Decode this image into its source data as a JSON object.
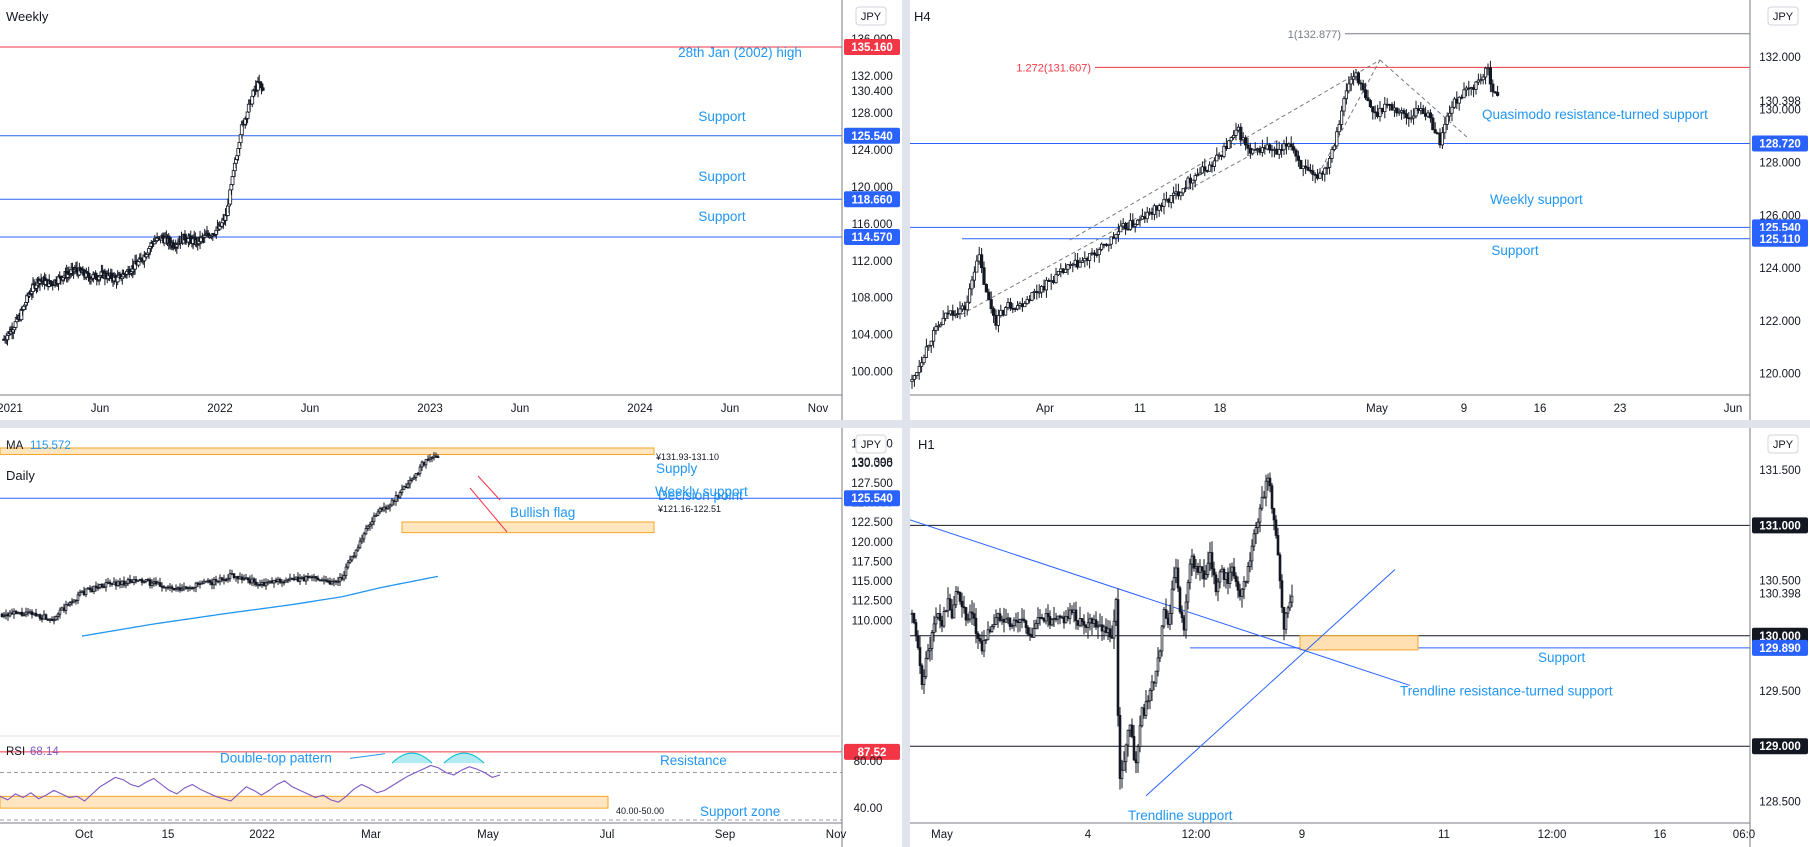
{
  "currency_badge": "JPY",
  "chart_data": [
    {
      "id": "weekly",
      "type": "candlestick",
      "title": "Weekly",
      "price_axis": {
        "min": 98.0,
        "max": 137.0,
        "ticks": [
          "136.000",
          "132.000",
          "128.000",
          "124.000",
          "120.000",
          "116.000",
          "112.000",
          "108.000",
          "104.000",
          "100.000"
        ]
      },
      "time_axis": [
        "2021",
        "Jun",
        "2022",
        "Jun",
        "2023",
        "Jun",
        "2024",
        "Jun",
        "Nov"
      ],
      "last_price": "130.400",
      "levels": [
        {
          "price": 135.16,
          "value": "135.160",
          "color": "#f23645",
          "label": "28th Jan (2002) high"
        },
        {
          "price": 125.54,
          "value": "125.540",
          "color": "#2962ff",
          "label": "Support"
        },
        {
          "price": 118.66,
          "value": "118.660",
          "color": "#2962ff",
          "label": "Support"
        },
        {
          "price": 114.57,
          "value": "114.570",
          "color": "#2962ff",
          "label": "Support"
        }
      ],
      "price_path": [
        [
          0,
          103.5
        ],
        [
          6,
          104.5
        ],
        [
          14,
          106
        ],
        [
          22,
          108.5
        ],
        [
          30,
          110
        ],
        [
          40,
          109.5
        ],
        [
          50,
          110.3
        ],
        [
          62,
          111
        ],
        [
          74,
          110.2
        ],
        [
          86,
          110.5
        ],
        [
          98,
          110
        ],
        [
          108,
          111
        ],
        [
          118,
          112
        ],
        [
          128,
          114
        ],
        [
          136,
          114.5
        ],
        [
          146,
          113.8
        ],
        [
          156,
          114.5
        ],
        [
          166,
          114
        ],
        [
          176,
          114.8
        ],
        [
          186,
          115.5
        ],
        [
          192,
          117
        ],
        [
          196,
          120
        ],
        [
          200,
          123
        ],
        [
          204,
          126
        ],
        [
          208,
          127.5
        ],
        [
          212,
          129
        ],
        [
          216,
          130.5
        ],
        [
          220,
          131.2
        ],
        [
          223,
          130.4
        ]
      ]
    },
    {
      "id": "h4",
      "type": "candlestick",
      "title": "H4",
      "price_axis": {
        "min": 119.0,
        "max": 133.4,
        "ticks": [
          "132.000",
          "130.000",
          "128.000",
          "126.000",
          "124.000",
          "122.000",
          "120.000"
        ]
      },
      "time_axis": [
        "Apr",
        "11",
        "18",
        "May",
        "9",
        "16",
        "23",
        "Jun"
      ],
      "last_price": "130.398",
      "fib_levels": [
        {
          "price": 132.877,
          "label": "1(132.877)",
          "color": "#787b86"
        },
        {
          "price": 131.607,
          "label": "1.272(131.607)",
          "color": "#f23645"
        }
      ],
      "levels": [
        {
          "price": 128.72,
          "value": "128.720",
          "color": "#2962ff",
          "label": "Quasimodo resistance-turned support"
        },
        {
          "price": 125.54,
          "value": "125.540",
          "color": "#2962ff",
          "label": "Weekly support"
        },
        {
          "price": 125.11,
          "value": "125.110",
          "color": "#2962ff",
          "label": "Support"
        }
      ],
      "price_path": [
        [
          0,
          119.7
        ],
        [
          15,
          121.3
        ],
        [
          30,
          122.3
        ],
        [
          45,
          122.5
        ],
        [
          55,
          124.6
        ],
        [
          62,
          123
        ],
        [
          70,
          122
        ],
        [
          80,
          122.6
        ],
        [
          90,
          122.6
        ],
        [
          100,
          123
        ],
        [
          115,
          123.5
        ],
        [
          130,
          124
        ],
        [
          145,
          124.3
        ],
        [
          160,
          124.8
        ],
        [
          175,
          125.5
        ],
        [
          190,
          125.8
        ],
        [
          205,
          126.3
        ],
        [
          220,
          126.8
        ],
        [
          235,
          127.5
        ],
        [
          250,
          127.9
        ],
        [
          265,
          128.8
        ],
        [
          272,
          129.2
        ],
        [
          282,
          128.3
        ],
        [
          295,
          128.6
        ],
        [
          305,
          128.3
        ],
        [
          315,
          128.8
        ],
        [
          325,
          127.8
        ],
        [
          335,
          127.4
        ],
        [
          345,
          127.8
        ],
        [
          352,
          128.8
        ],
        [
          358,
          130
        ],
        [
          364,
          131
        ],
        [
          370,
          131.4
        ],
        [
          378,
          130.4
        ],
        [
          386,
          129.8
        ],
        [
          394,
          130.2
        ],
        [
          404,
          130
        ],
        [
          414,
          129.7
        ],
        [
          424,
          130.1
        ],
        [
          432,
          129.6
        ],
        [
          440,
          128.8
        ],
        [
          448,
          130
        ],
        [
          456,
          130.5
        ],
        [
          466,
          130.8
        ],
        [
          474,
          131.2
        ],
        [
          480,
          131.5
        ],
        [
          484,
          130.8
        ],
        [
          488,
          130.4
        ]
      ]
    },
    {
      "id": "daily",
      "type": "candlestick",
      "title": "Daily",
      "ma_label": "MA",
      "ma_value": "115.572",
      "price_axis": {
        "min": 107.5,
        "max": 133.2,
        "ticks": [
          "132.500",
          "130.000",
          "127.500",
          "125.000",
          "122.500",
          "120.000",
          "117.500",
          "115.000",
          "112.500",
          "110.000"
        ]
      },
      "time_axis": [
        "Oct",
        "15",
        "2022",
        "Mar",
        "May",
        "Jul",
        "Sep",
        "Nov"
      ],
      "last_price": "130.398",
      "zones": [
        {
          "from": 131.1,
          "to": 131.93,
          "label": "Supply",
          "range_label": "¥131.93-131.10"
        },
        {
          "from": 121.16,
          "to": 122.51,
          "label": "Decision point",
          "range_label": "¥121.16-122.51"
        }
      ],
      "levels": [
        {
          "price": 125.54,
          "value": "125.540",
          "color": "#2962ff",
          "label": "Weekly support"
        }
      ],
      "pattern_label": "Bullish flag",
      "price_path": [
        [
          0,
          110.8
        ],
        [
          30,
          110.8
        ],
        [
          50,
          110.2
        ],
        [
          65,
          111.8
        ],
        [
          80,
          113.5
        ],
        [
          100,
          114.5
        ],
        [
          120,
          114.8
        ],
        [
          140,
          115
        ],
        [
          160,
          114.4
        ],
        [
          175,
          113.8
        ],
        [
          195,
          114.5
        ],
        [
          215,
          115
        ],
        [
          230,
          115.8
        ],
        [
          245,
          115.2
        ],
        [
          260,
          114.5
        ],
        [
          275,
          115
        ],
        [
          295,
          115.2
        ],
        [
          315,
          115.5
        ],
        [
          330,
          114.8
        ],
        [
          340,
          115.5
        ],
        [
          350,
          118
        ],
        [
          360,
          120.5
        ],
        [
          370,
          122.8
        ],
        [
          378,
          124
        ],
        [
          388,
          124.8
        ],
        [
          398,
          126
        ],
        [
          406,
          127.5
        ],
        [
          414,
          128.5
        ],
        [
          420,
          130
        ],
        [
          428,
          130.5
        ],
        [
          436,
          131
        ]
      ],
      "ma_path": [
        [
          80,
          108
        ],
        [
          150,
          109.5
        ],
        [
          220,
          110.8
        ],
        [
          290,
          112
        ],
        [
          340,
          113
        ],
        [
          380,
          114.2
        ],
        [
          420,
          115.2
        ],
        [
          436,
          115.6
        ]
      ]
    },
    {
      "id": "rsi",
      "type": "line",
      "title": "RSI",
      "value": "68.14",
      "price_axis": {
        "min": 30,
        "max": 95,
        "ticks": [
          "80.00",
          "40.00"
        ]
      },
      "resistance": {
        "value": "87.52",
        "label": "Resistance"
      },
      "zone": {
        "from": 40,
        "to": 50,
        "label": "Support zone",
        "range_label": "40.00-50.00"
      },
      "pattern_label": "Double-top pattern",
      "values": [
        50,
        47,
        52,
        49,
        53,
        48,
        51,
        55,
        52,
        49,
        50,
        46,
        52,
        58,
        62,
        66,
        64,
        60,
        58,
        62,
        65,
        60,
        55,
        52,
        57,
        60,
        56,
        53,
        50,
        48,
        46,
        52,
        58,
        55,
        51,
        55,
        60,
        63,
        58,
        55,
        52,
        49,
        51,
        47,
        45,
        50,
        56,
        60,
        57,
        53,
        55,
        59,
        63,
        67,
        70,
        73,
        76,
        74,
        70,
        68,
        72,
        75,
        73,
        70,
        66,
        68
      ]
    },
    {
      "id": "h1",
      "type": "candlestick",
      "title": "H1",
      "price_axis": {
        "min": 128.35,
        "max": 131.7,
        "ticks": [
          "131.500",
          "131.000",
          "130.500",
          "130.000",
          "129.500",
          "129.000",
          "128.500"
        ]
      },
      "time_axis": [
        "May",
        "4",
        "12:00",
        "9",
        "11",
        "12:00",
        "16",
        "06:0"
      ],
      "last_price": "130.398",
      "levels": [
        {
          "price": 131.0,
          "value": "131.000",
          "color": "#131722",
          "label": ""
        },
        {
          "price": 130.0,
          "value": "130.000",
          "color": "#131722",
          "label": ""
        },
        {
          "price": 129.89,
          "value": "129.890",
          "color": "#2962ff",
          "label": "Support"
        },
        {
          "price": 129.0,
          "value": "129.000",
          "color": "#131722",
          "label": ""
        }
      ],
      "trendline_labels": [
        "Trendline resistance-turned support",
        "Trendline support"
      ],
      "price_path": [
        [
          0,
          130.2
        ],
        [
          5,
          129.9
        ],
        [
          10,
          129.6
        ],
        [
          15,
          129.8
        ],
        [
          20,
          130
        ],
        [
          25,
          130.2
        ],
        [
          30,
          130.1
        ],
        [
          35,
          130.3
        ],
        [
          40,
          130.2
        ],
        [
          45,
          130.4
        ],
        [
          50,
          130.3
        ],
        [
          55,
          130.1
        ],
        [
          60,
          130.2
        ],
        [
          65,
          130
        ],
        [
          70,
          129.9
        ],
        [
          80,
          130.1
        ],
        [
          90,
          130.2
        ],
        [
          100,
          130.1
        ],
        [
          110,
          130.15
        ],
        [
          120,
          130
        ],
        [
          130,
          130.2
        ],
        [
          140,
          130.1
        ],
        [
          150,
          130.15
        ],
        [
          160,
          130.2
        ],
        [
          170,
          130.1
        ],
        [
          180,
          130.15
        ],
        [
          190,
          130.1
        ],
        [
          200,
          130
        ],
        [
          204,
          130.3
        ],
        [
          207,
          128.7
        ],
        [
          212,
          128.9
        ],
        [
          218,
          129.2
        ],
        [
          224,
          128.8
        ],
        [
          230,
          129.3
        ],
        [
          236,
          129.4
        ],
        [
          242,
          129.6
        ],
        [
          248,
          129.9
        ],
        [
          252,
          130.2
        ],
        [
          256,
          130.1
        ],
        [
          260,
          130.4
        ],
        [
          264,
          130.6
        ],
        [
          268,
          130.2
        ],
        [
          272,
          130.1
        ],
        [
          276,
          130.5
        ],
        [
          280,
          130.7
        ],
        [
          286,
          130.6
        ],
        [
          292,
          130.5
        ],
        [
          298,
          130.7
        ],
        [
          304,
          130.4
        ],
        [
          310,
          130.6
        ],
        [
          316,
          130.5
        ],
        [
          322,
          130.6
        ],
        [
          328,
          130.3
        ],
        [
          334,
          130.5
        ],
        [
          340,
          130.8
        ],
        [
          346,
          131
        ],
        [
          352,
          131.3
        ],
        [
          356,
          131.4
        ],
        [
          360,
          131.2
        ],
        [
          364,
          130.9
        ],
        [
          368,
          130.5
        ],
        [
          372,
          130.1
        ],
        [
          376,
          130.2
        ],
        [
          380,
          130.4
        ]
      ]
    }
  ]
}
